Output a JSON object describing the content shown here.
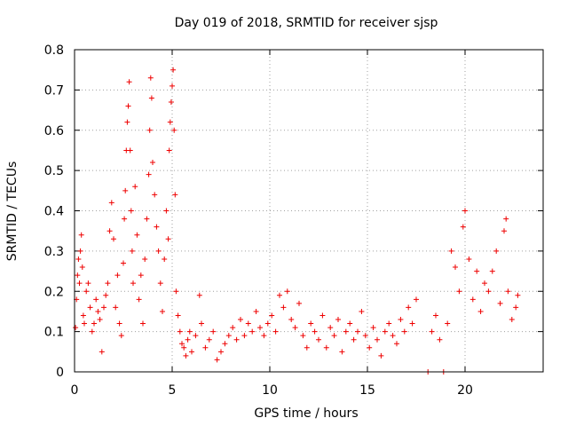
{
  "chart_data": {
    "type": "scatter",
    "title": "Day 019 of 2018, SRMTID for receiver sjsp",
    "xlabel": "GPS time / hours",
    "ylabel": "SRMTID / TECUs",
    "xlim": [
      0,
      24
    ],
    "ylim": [
      0,
      0.8
    ],
    "xticks": [
      0,
      5,
      10,
      15,
      20
    ],
    "xtick_labels": [
      "0",
      "5",
      "10",
      "15",
      "20"
    ],
    "yticks": [
      0,
      0.1,
      0.2,
      0.3,
      0.4,
      0.5,
      0.6,
      0.7,
      0.8
    ],
    "ytick_labels": [
      "0",
      "0.1",
      "0.2",
      "0.3",
      "0.4",
      "0.5",
      "0.6",
      "0.7",
      "0.8"
    ],
    "grid": true,
    "marker": "plus",
    "color": "#ee0000",
    "series": [
      {
        "name": "SRMTID",
        "points": [
          [
            0.05,
            0.11
          ],
          [
            0.1,
            0.18
          ],
          [
            0.15,
            0.24
          ],
          [
            0.2,
            0.28
          ],
          [
            0.25,
            0.22
          ],
          [
            0.3,
            0.3
          ],
          [
            0.35,
            0.34
          ],
          [
            0.4,
            0.26
          ],
          [
            0.45,
            0.14
          ],
          [
            0.5,
            0.12
          ],
          [
            0.6,
            0.2
          ],
          [
            0.7,
            0.22
          ],
          [
            0.8,
            0.16
          ],
          [
            0.9,
            0.1
          ],
          [
            1.0,
            0.12
          ],
          [
            1.1,
            0.18
          ],
          [
            1.2,
            0.15
          ],
          [
            1.3,
            0.13
          ],
          [
            1.4,
            0.05
          ],
          [
            1.5,
            0.16
          ],
          [
            1.6,
            0.19
          ],
          [
            1.7,
            0.22
          ],
          [
            1.8,
            0.35
          ],
          [
            1.9,
            0.42
          ],
          [
            2.0,
            0.33
          ],
          [
            2.1,
            0.16
          ],
          [
            2.2,
            0.24
          ],
          [
            2.3,
            0.12
          ],
          [
            2.4,
            0.09
          ],
          [
            2.5,
            0.27
          ],
          [
            2.55,
            0.38
          ],
          [
            2.6,
            0.45
          ],
          [
            2.65,
            0.55
          ],
          [
            2.7,
            0.62
          ],
          [
            2.75,
            0.66
          ],
          [
            2.8,
            0.72
          ],
          [
            2.85,
            0.55
          ],
          [
            2.9,
            0.4
          ],
          [
            2.95,
            0.3
          ],
          [
            3.0,
            0.22
          ],
          [
            3.1,
            0.46
          ],
          [
            3.2,
            0.34
          ],
          [
            3.3,
            0.18
          ],
          [
            3.4,
            0.24
          ],
          [
            3.5,
            0.12
          ],
          [
            3.6,
            0.28
          ],
          [
            3.7,
            0.38
          ],
          [
            3.8,
            0.49
          ],
          [
            3.85,
            0.6
          ],
          [
            3.9,
            0.73
          ],
          [
            3.95,
            0.68
          ],
          [
            4.0,
            0.52
          ],
          [
            4.1,
            0.44
          ],
          [
            4.2,
            0.36
          ],
          [
            4.3,
            0.3
          ],
          [
            4.4,
            0.22
          ],
          [
            4.5,
            0.15
          ],
          [
            4.6,
            0.28
          ],
          [
            4.7,
            0.4
          ],
          [
            4.8,
            0.33
          ],
          [
            4.85,
            0.55
          ],
          [
            4.9,
            0.62
          ],
          [
            4.95,
            0.67
          ],
          [
            5.0,
            0.71
          ],
          [
            5.05,
            0.75
          ],
          [
            5.1,
            0.6
          ],
          [
            5.15,
            0.44
          ],
          [
            5.2,
            0.2
          ],
          [
            5.3,
            0.14
          ],
          [
            5.4,
            0.1
          ],
          [
            5.5,
            0.07
          ],
          [
            5.6,
            0.06
          ],
          [
            5.7,
            0.04
          ],
          [
            5.8,
            0.08
          ],
          [
            5.9,
            0.1
          ],
          [
            6.0,
            0.05
          ],
          [
            6.2,
            0.09
          ],
          [
            6.4,
            0.19
          ],
          [
            6.5,
            0.12
          ],
          [
            6.7,
            0.06
          ],
          [
            6.9,
            0.08
          ],
          [
            7.1,
            0.1
          ],
          [
            7.3,
            0.03
          ],
          [
            7.5,
            0.05
          ],
          [
            7.7,
            0.07
          ],
          [
            7.9,
            0.09
          ],
          [
            8.1,
            0.11
          ],
          [
            8.3,
            0.08
          ],
          [
            8.5,
            0.13
          ],
          [
            8.7,
            0.09
          ],
          [
            8.9,
            0.12
          ],
          [
            9.1,
            0.1
          ],
          [
            9.3,
            0.15
          ],
          [
            9.5,
            0.11
          ],
          [
            9.7,
            0.09
          ],
          [
            9.9,
            0.12
          ],
          [
            10.1,
            0.14
          ],
          [
            10.3,
            0.1
          ],
          [
            10.5,
            0.19
          ],
          [
            10.7,
            0.16
          ],
          [
            10.9,
            0.2
          ],
          [
            11.1,
            0.13
          ],
          [
            11.3,
            0.11
          ],
          [
            11.5,
            0.17
          ],
          [
            11.7,
            0.09
          ],
          [
            11.9,
            0.06
          ],
          [
            12.1,
            0.12
          ],
          [
            12.3,
            0.1
          ],
          [
            12.5,
            0.08
          ],
          [
            12.7,
            0.14
          ],
          [
            12.9,
            0.06
          ],
          [
            13.1,
            0.11
          ],
          [
            13.3,
            0.09
          ],
          [
            13.5,
            0.13
          ],
          [
            13.7,
            0.05
          ],
          [
            13.9,
            0.1
          ],
          [
            14.1,
            0.12
          ],
          [
            14.3,
            0.08
          ],
          [
            14.5,
            0.1
          ],
          [
            14.7,
            0.15
          ],
          [
            14.9,
            0.09
          ],
          [
            15.1,
            0.06
          ],
          [
            15.3,
            0.11
          ],
          [
            15.5,
            0.08
          ],
          [
            15.7,
            0.04
          ],
          [
            15.9,
            0.1
          ],
          [
            16.1,
            0.12
          ],
          [
            16.3,
            0.09
          ],
          [
            16.5,
            0.07
          ],
          [
            16.7,
            0.13
          ],
          [
            16.9,
            0.1
          ],
          [
            17.1,
            0.16
          ],
          [
            17.3,
            0.12
          ],
          [
            17.5,
            0.18
          ],
          [
            18.1,
            0.0
          ],
          [
            18.3,
            0.1
          ],
          [
            18.5,
            0.14
          ],
          [
            18.7,
            0.08
          ],
          [
            18.9,
            0.0
          ],
          [
            19.1,
            0.12
          ],
          [
            19.3,
            0.3
          ],
          [
            19.5,
            0.26
          ],
          [
            19.7,
            0.2
          ],
          [
            19.9,
            0.36
          ],
          [
            20.0,
            0.4
          ],
          [
            20.2,
            0.28
          ],
          [
            20.4,
            0.18
          ],
          [
            20.6,
            0.25
          ],
          [
            20.8,
            0.15
          ],
          [
            21.0,
            0.22
          ],
          [
            21.2,
            0.2
          ],
          [
            21.4,
            0.25
          ],
          [
            21.6,
            0.3
          ],
          [
            21.8,
            0.17
          ],
          [
            22.0,
            0.35
          ],
          [
            22.1,
            0.38
          ],
          [
            22.2,
            0.2
          ],
          [
            22.4,
            0.13
          ],
          [
            22.6,
            0.16
          ],
          [
            22.7,
            0.19
          ]
        ]
      }
    ]
  }
}
